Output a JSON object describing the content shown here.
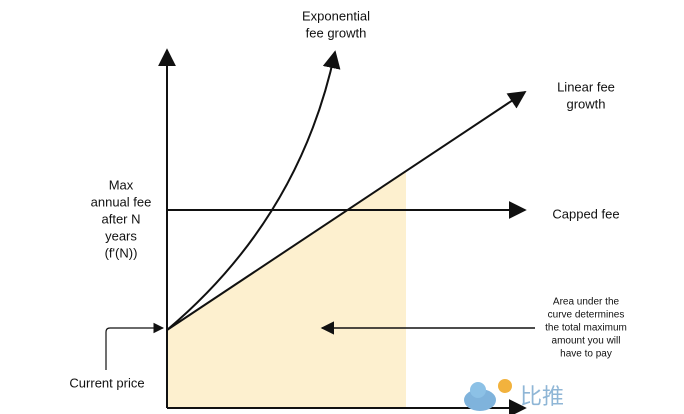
{
  "labels": {
    "exponential": [
      "Exponential",
      "fee growth"
    ],
    "linear": [
      "Linear fee",
      "growth"
    ],
    "capped": "Capped fee",
    "y_axis": [
      "Max",
      "annual fee",
      "after N",
      "years",
      "(f'(N))"
    ],
    "area_note": [
      "Area under the",
      "curve determines",
      "the total maximum",
      "amount you will",
      "have to pay"
    ],
    "current_price": "Current price"
  },
  "watermark": "比推"
}
